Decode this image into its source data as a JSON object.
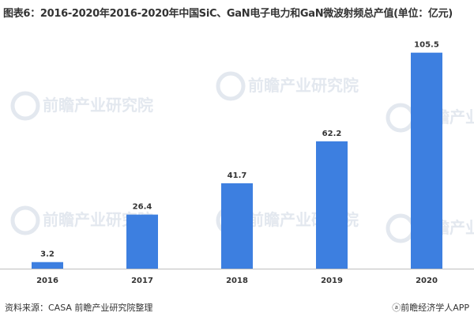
{
  "chart_data": {
    "type": "bar",
    "title": "图表6：2016-2020年2016-2020年中国SiC、GaN电子电力和GaN微波射频总产值(单位：亿元)",
    "categories": [
      "2016",
      "2017",
      "2018",
      "2019",
      "2020"
    ],
    "values": [
      3.2,
      26.4,
      41.7,
      62.2,
      105.5
    ],
    "data_labels": [
      "3.2",
      "26.4",
      "41.7",
      "62.2",
      "105.5"
    ],
    "xlabel": "",
    "ylabel": "",
    "ylim": [
      0,
      110
    ],
    "grid": false,
    "legend": "none",
    "bar_color": "#3d7fe0"
  },
  "footer": {
    "source": "资料来源：CASA 前瞻产业研究院整理",
    "brand_icon": "at-circle-icon",
    "brand": "前瞻经济学人APP"
  },
  "watermark": {
    "text": "前瞻产业研究院",
    "color": "#e3e8ef"
  },
  "colors": {
    "axis": "#bfbfbf",
    "text": "#333333"
  }
}
